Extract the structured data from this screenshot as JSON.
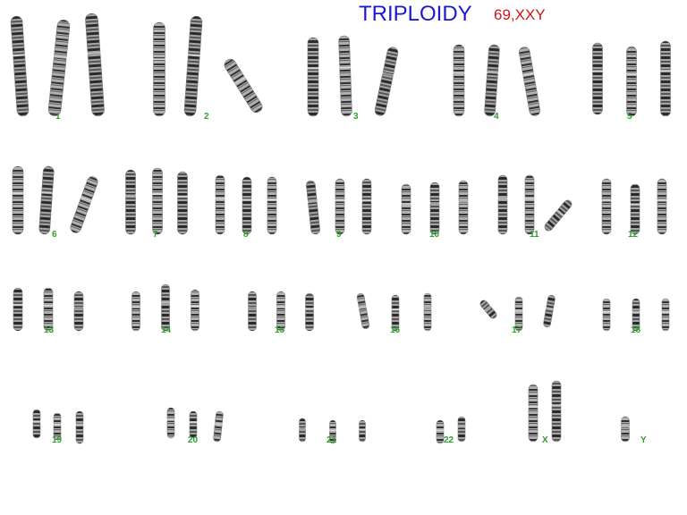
{
  "title": "TRIPLOIDY",
  "karyotype": "69,XXY",
  "colors": {
    "title": "#1a1acc",
    "karyotype": "#d01818",
    "label": "#2e9e2e",
    "chromosome_dark": "#262626",
    "chromosome_light": "#9a9a9a"
  },
  "chromosome_labels": {
    "c1": "1",
    "c2": "2",
    "c3": "3",
    "c4": "4",
    "c5": "5",
    "c6": "6",
    "c7": "7",
    "c8": "8",
    "c9": "9",
    "c10": "10",
    "c11": "11",
    "c12": "12",
    "c13": "13",
    "c14": "14",
    "c15": "15",
    "c16": "16",
    "c17": "17",
    "c18": "18",
    "c19": "19",
    "c20": "20",
    "c21": "21",
    "c22": "22",
    "cX": "X",
    "cY": "Y"
  }
}
